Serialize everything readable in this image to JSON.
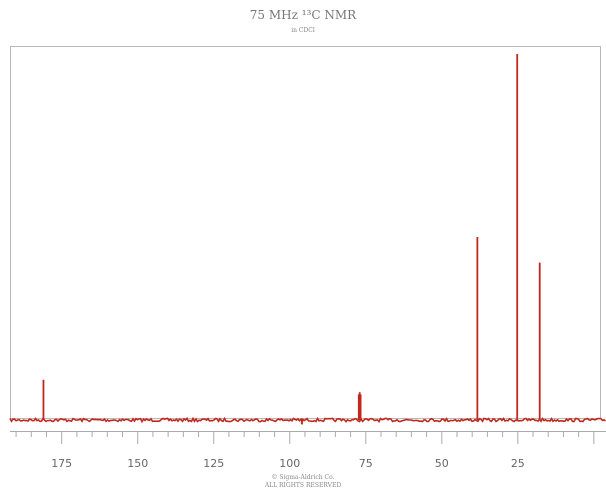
{
  "chart_data": {
    "type": "line",
    "title": "75 MHz ¹³C NMR",
    "subtitle": "in CDCl",
    "xlabel": "",
    "ylabel": "",
    "x_reversed": true,
    "xlim": [
      192,
      -4
    ],
    "ylim": [
      0,
      100
    ],
    "x_ticks": [
      175,
      150,
      125,
      100,
      75,
      50,
      25
    ],
    "grid": false,
    "legend": "none",
    "line_color": "#c0281e",
    "peaks": [
      {
        "x": 181.0,
        "y": 11
      },
      {
        "x": 77.3,
        "y": 7
      },
      {
        "x": 77.0,
        "y": 7.6
      },
      {
        "x": 76.7,
        "y": 7
      },
      {
        "x": 38.3,
        "y": 50
      },
      {
        "x": 25.2,
        "y": 100
      },
      {
        "x": 17.8,
        "y": 43
      }
    ],
    "baseline_artifacts": [
      {
        "x": 96.0,
        "y": -1.2
      }
    ]
  },
  "copyright": {
    "line1": "© Sigma-Aldrich Co.",
    "line2": "ALL RIGHTS RESERVED"
  }
}
